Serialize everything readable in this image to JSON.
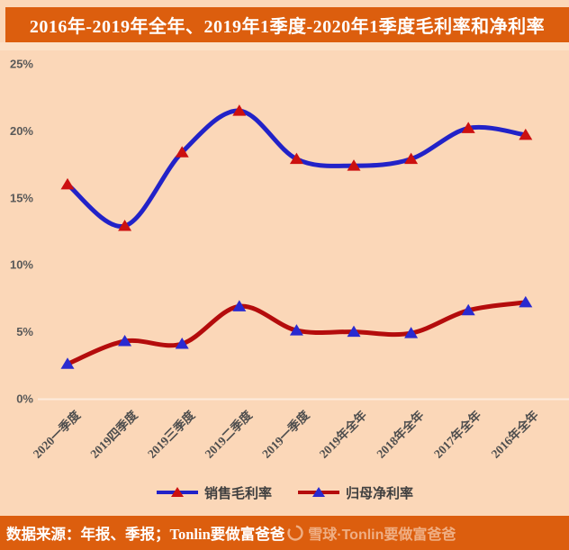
{
  "title": "2016年-2019年全年、2019年1季度-2020年1季度毛利率和净利率",
  "colors": {
    "banner_bg": "#DC5E0E",
    "page_bg": "#FBD7B8",
    "axis_text": "#595959",
    "legend_text": "#3F3F3F",
    "baseline": "rgba(255,255,255,0.5)"
  },
  "chart_data": {
    "type": "line",
    "categories": [
      "2020一季度",
      "2019四季度",
      "2019三季度",
      "2019二季度",
      "2019一季度",
      "2019年全年",
      "2018年全年",
      "2017年全年",
      "2016年全年"
    ],
    "series": [
      {
        "name": "销售毛利率",
        "values": [
          16.0,
          12.9,
          18.4,
          21.5,
          17.9,
          17.4,
          17.9,
          20.2,
          19.7
        ],
        "line_color": "#2222C8",
        "marker_color": "#CC1010"
      },
      {
        "name": "归母净利率",
        "values": [
          2.6,
          4.3,
          4.1,
          6.9,
          5.1,
          5.0,
          4.9,
          6.6,
          7.2
        ],
        "line_color": "#B40C0C",
        "marker_color": "#2A2AD0"
      }
    ],
    "y_ticks": [
      "0%",
      "5%",
      "10%",
      "15%",
      "20%",
      "25%"
    ],
    "ylim": [
      0,
      25
    ],
    "grid": false,
    "legend_position": "bottom",
    "marker_shape": "triangle-up"
  },
  "footer": {
    "source_text": "数据来源：年报、季报；Tonlin要做富爸爸",
    "watermark_text": "雪球·Tonlin要做富爸爸"
  }
}
